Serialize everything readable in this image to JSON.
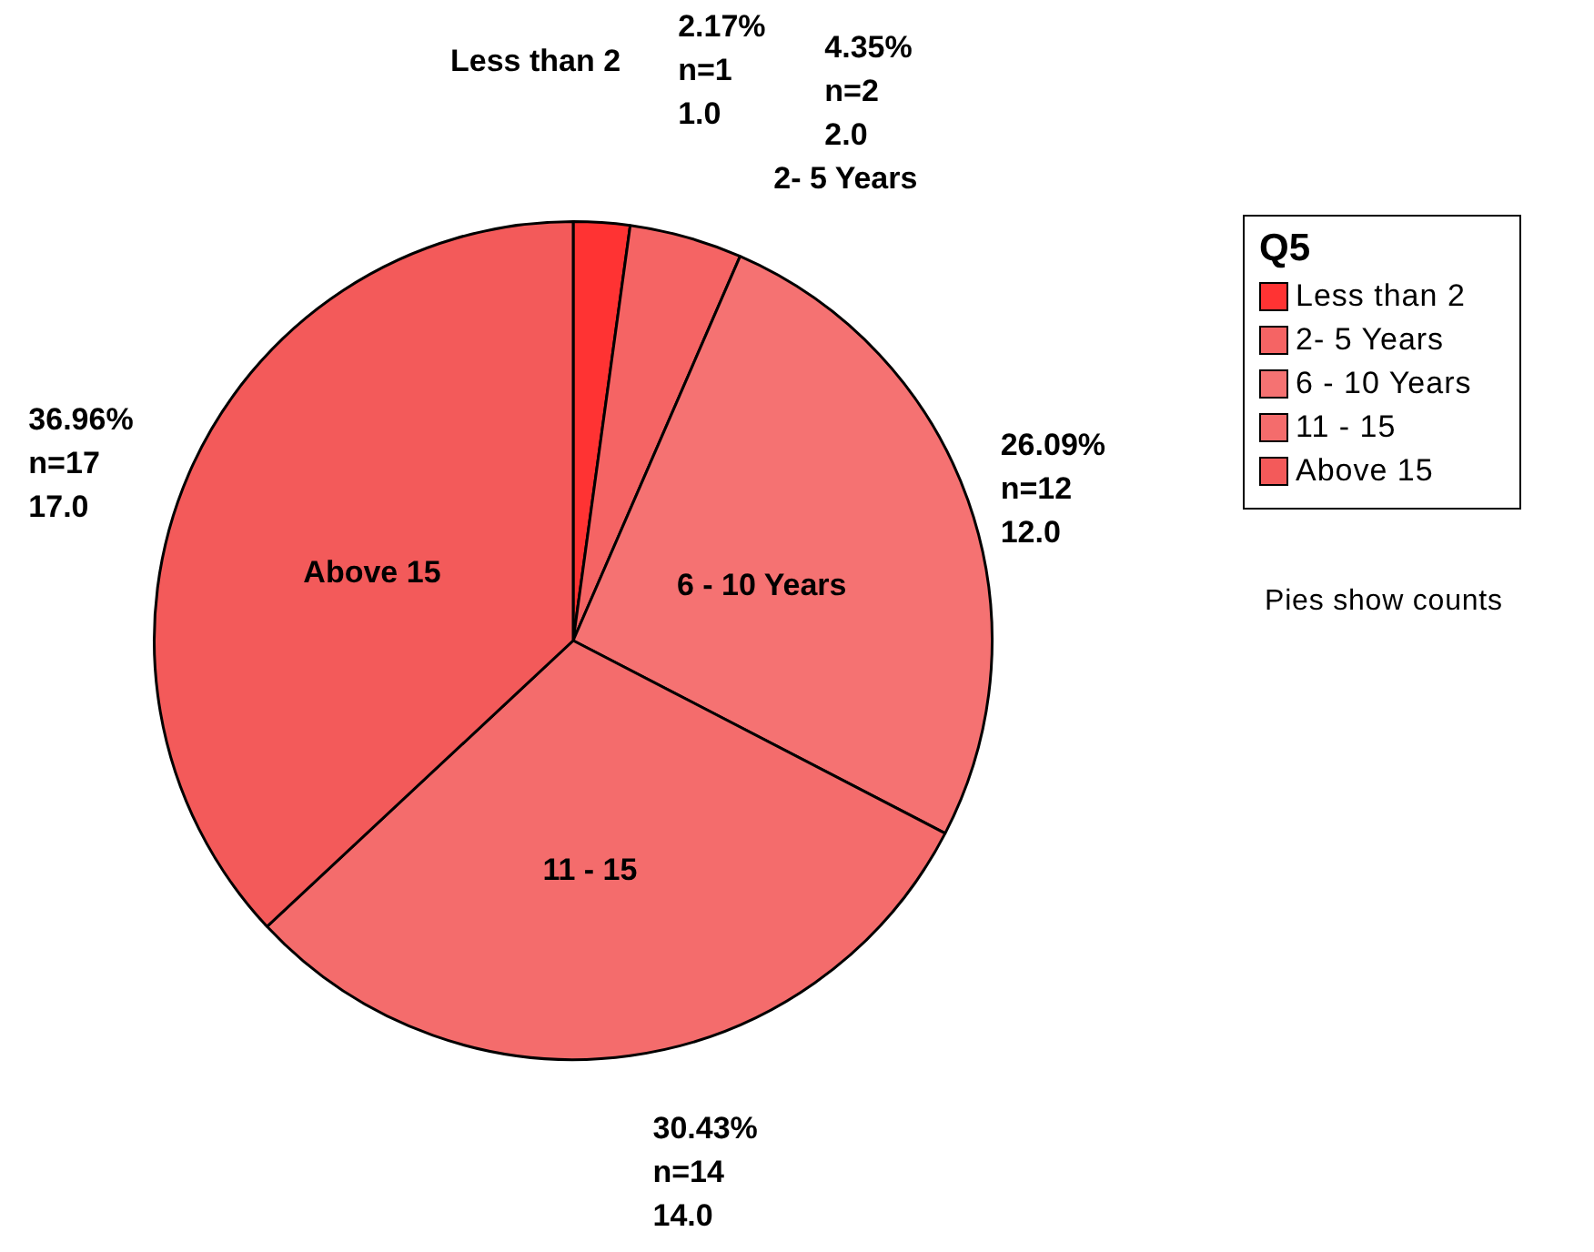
{
  "chart_data": {
    "type": "pie",
    "categories": [
      "Less than 2",
      "2- 5 Years",
      "6 - 10 Years",
      "11 - 15",
      "Above 15"
    ],
    "values": [
      1,
      2,
      12,
      14,
      17
    ],
    "colors": [
      "#ff3333",
      "#f56464",
      "#f57272",
      "#f46c6c",
      "#f35a5a"
    ],
    "value_labels": [
      "2.17%\nn=1\n1.0",
      "4.35%\nn=2\n2.0",
      "26.09%\nn=12\n12.0",
      "30.43%\nn=14\n14.0",
      "36.96%\nn=17\n17.0"
    ],
    "legend": "right",
    "legend_title": "Q5",
    "annotations": [
      "Pies show counts"
    ]
  }
}
